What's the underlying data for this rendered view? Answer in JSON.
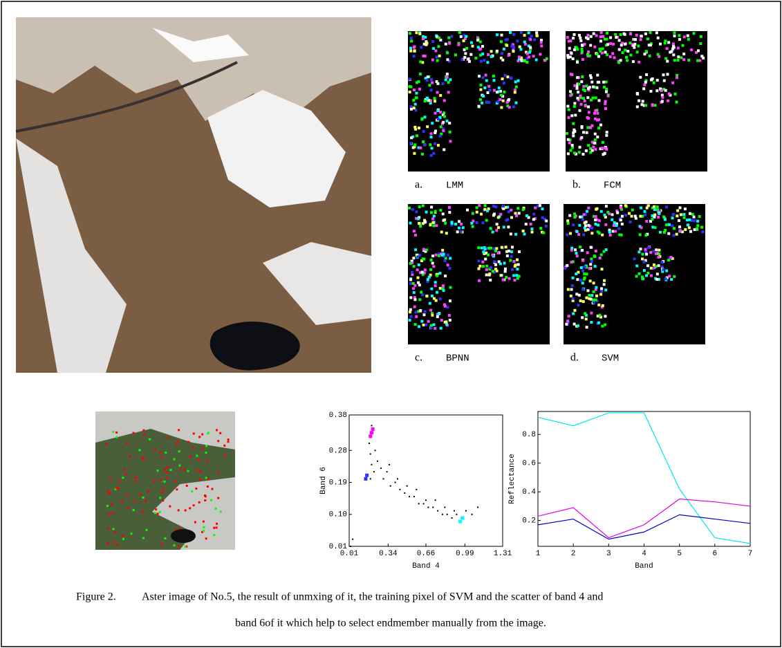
{
  "panels": [
    {
      "letter": "a.",
      "method": "LMM"
    },
    {
      "letter": "b.",
      "method": "FCM"
    },
    {
      "letter": "c.",
      "method": "BPNN"
    },
    {
      "letter": "d.",
      "method": "SVM"
    }
  ],
  "chart_data": [
    {
      "type": "scatter",
      "xlabel": "Band 4",
      "ylabel": "Band 6",
      "xlim": [
        0.01,
        1.31
      ],
      "ylim": [
        0.01,
        0.38
      ],
      "xticks": [
        0.01,
        0.34,
        0.66,
        0.99,
        1.31
      ],
      "yticks": [
        0.01,
        {
          "value": 0.1,
          "label": "0.10"
        },
        0.19,
        0.28,
        0.38
      ],
      "series": [
        {
          "color": "#000000",
          "x": [
            0.18,
            0.19,
            0.2,
            0.21,
            0.22,
            0.2,
            0.19,
            0.23,
            0.25,
            0.28,
            0.3,
            0.33,
            0.36,
            0.4,
            0.44,
            0.48,
            0.52,
            0.56,
            0.6,
            0.64,
            0.68,
            0.72,
            0.76,
            0.8,
            0.84,
            0.88,
            0.92,
            0.96,
            1.0,
            1.05,
            1.1,
            0.35,
            0.42,
            0.5,
            0.58,
            0.66,
            0.74,
            0.82,
            0.9,
            0.04,
            0.02
          ],
          "values": [
            0.3,
            0.27,
            0.24,
            0.33,
            0.22,
            0.35,
            0.2,
            0.28,
            0.25,
            0.23,
            0.2,
            0.22,
            0.18,
            0.19,
            0.17,
            0.16,
            0.15,
            0.15,
            0.13,
            0.13,
            0.12,
            0.12,
            0.11,
            0.1,
            0.1,
            0.09,
            0.1,
            0.09,
            0.11,
            0.1,
            0.12,
            0.24,
            0.2,
            0.18,
            0.17,
            0.14,
            0.14,
            0.12,
            0.11,
            0.03,
            0.01
          ]
        },
        {
          "color": "#ff00ff",
          "x": [
            0.2,
            0.21,
            0.19
          ],
          "values": [
            0.33,
            0.34,
            0.32
          ]
        },
        {
          "color": "#3333ff",
          "x": [
            0.15,
            0.16
          ],
          "values": [
            0.2,
            0.21
          ]
        },
        {
          "color": "#00ffff",
          "x": [
            0.95,
            0.97
          ],
          "values": [
            0.08,
            0.09
          ]
        }
      ]
    },
    {
      "type": "line",
      "xlabel": "Band",
      "ylabel": "Reflectance",
      "xlim": [
        1,
        7
      ],
      "ylim": [
        0.02,
        0.96
      ],
      "xticks": [
        1,
        2,
        3,
        4,
        5,
        6,
        7
      ],
      "yticks": [
        0.2,
        0.4,
        0.6,
        0.8
      ],
      "x": [
        1,
        2,
        3,
        4,
        5,
        6,
        7
      ],
      "series": [
        {
          "color": "#00e5ee",
          "values": [
            0.92,
            0.86,
            0.95,
            0.95,
            0.42,
            0.08,
            0.04
          ]
        },
        {
          "color": "#e000e0",
          "values": [
            0.23,
            0.29,
            0.08,
            0.17,
            0.35,
            0.33,
            0.3
          ]
        },
        {
          "color": "#0000cc",
          "values": [
            0.17,
            0.21,
            0.07,
            0.12,
            0.24,
            0.21,
            0.18
          ]
        }
      ]
    }
  ],
  "caption": {
    "label": "Figure 2.",
    "lines": [
      "Aster image of No.5, the result of unmxing of it, the training pixel of SVM and the scatter of band 4 and",
      "band 6of it which help to select endmember manually from the image."
    ]
  }
}
